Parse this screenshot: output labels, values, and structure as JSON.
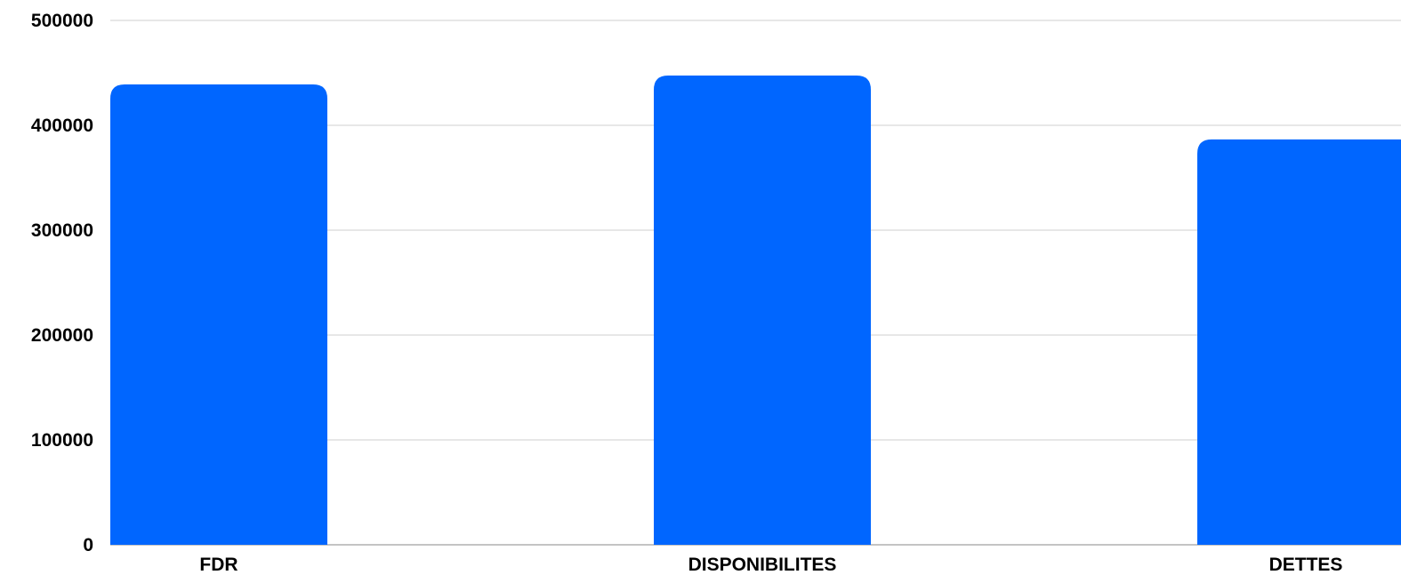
{
  "chart_data": {
    "type": "bar",
    "categories": [
      "FDR",
      "DISPONIBILITES",
      "DETTES"
    ],
    "values": [
      439000,
      447500,
      386500
    ],
    "ylim": [
      0,
      500000
    ],
    "yticks": [
      0,
      100000,
      200000,
      300000,
      400000,
      500000
    ],
    "ytick_labels": [
      "0",
      "100000",
      "200000",
      "300000",
      "400000",
      "500000"
    ],
    "title": "",
    "xlabel": "",
    "ylabel": "",
    "grid": true,
    "legend": "none",
    "bar_color": "#0066ff",
    "grid_color": "#cfcfcf",
    "text_color": "#000000"
  }
}
